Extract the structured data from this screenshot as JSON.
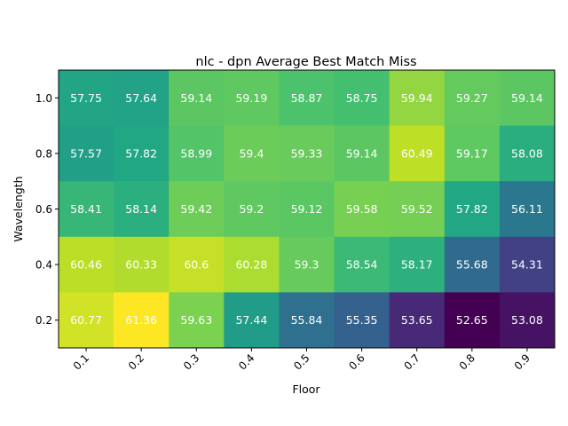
{
  "chart_data": {
    "type": "heatmap",
    "title": "nlc - dpn Average Best Match Miss",
    "xlabel": "Floor",
    "ylabel": "Wavelength",
    "x_categories": [
      "0.1",
      "0.2",
      "0.3",
      "0.4",
      "0.5",
      "0.6",
      "0.7",
      "0.8",
      "0.9"
    ],
    "y_categories": [
      "1.0",
      "0.8",
      "0.6",
      "0.4",
      "0.2"
    ],
    "values": [
      [
        "57.75",
        "57.64",
        "59.14",
        "59.19",
        "58.87",
        "58.75",
        "59.94",
        "59.27",
        "59.14"
      ],
      [
        "57.57",
        "57.82",
        "58.99",
        "59.4",
        "59.33",
        "59.14",
        "60.49",
        "59.17",
        "58.08"
      ],
      [
        "58.41",
        "58.14",
        "59.42",
        "59.2",
        "59.12",
        "59.58",
        "59.52",
        "57.82",
        "56.11"
      ],
      [
        "60.46",
        "60.33",
        "60.6",
        "60.28",
        "59.3",
        "58.54",
        "58.17",
        "55.68",
        "54.31"
      ],
      [
        "60.77",
        "61.36",
        "59.63",
        "57.44",
        "55.84",
        "55.35",
        "53.65",
        "52.65",
        "53.08"
      ]
    ],
    "colormap": "viridis",
    "value_range": [
      52.65,
      61.36
    ],
    "grid": false
  }
}
